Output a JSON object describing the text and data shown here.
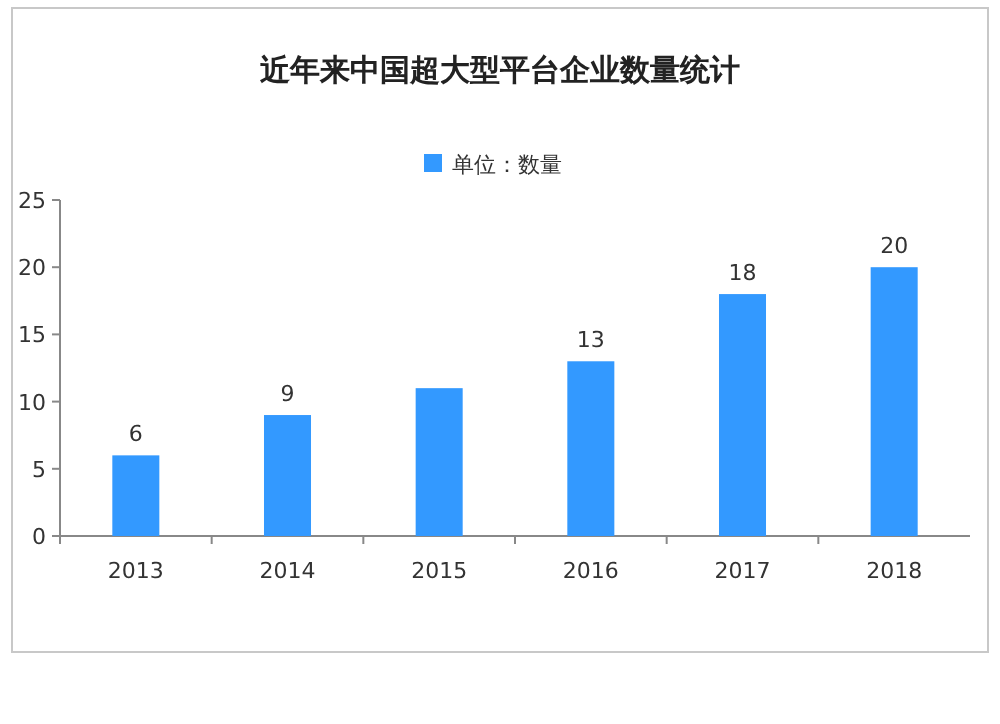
{
  "chart_data": {
    "type": "bar",
    "title": "近年来中国超大型平台企业数量统计",
    "categories": [
      "2013",
      "2014",
      "2015",
      "2016",
      "2017",
      "2018"
    ],
    "series": [
      {
        "name": "单位：数量",
        "color": "#3399ff",
        "values": [
          6,
          9,
          11,
          13,
          18,
          20
        ]
      }
    ],
    "value_labels": [
      "6",
      "9",
      null,
      "13",
      "18",
      "20"
    ],
    "ylim": [
      0,
      25
    ],
    "yticks": [
      0,
      5,
      10,
      15,
      20,
      25
    ],
    "grid": false,
    "legend": "top"
  }
}
